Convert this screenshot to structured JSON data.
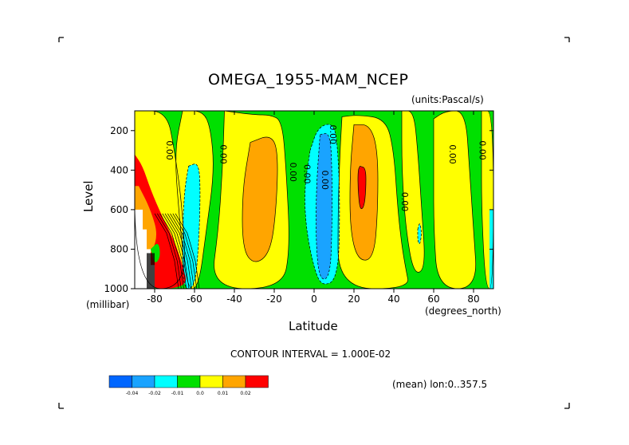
{
  "chart_data": {
    "type": "heatmap",
    "title": "OMEGA_1955-MAM_NCEP",
    "units": "(units:Pascal/s)",
    "xlabel": "Latitude",
    "ylabel": "Level",
    "x_unit": "(degrees_north)",
    "y_unit": "(millibar)",
    "xlim": [
      -90,
      90
    ],
    "ylim": [
      1000,
      100
    ],
    "x_ticks": [
      -80,
      -60,
      -40,
      -20,
      0,
      20,
      40,
      60,
      80
    ],
    "y_ticks": [
      200,
      400,
      600,
      800,
      1000
    ],
    "contour_interval": "CONTOUR INTERVAL = 1.000E-02",
    "mean_note": "(mean) lon:0..357.5",
    "contour_labels": [
      "0.00",
      "0.00",
      "0.00",
      "0.00",
      "0.00",
      "0.00",
      "0.00",
      "0.00",
      "0.00"
    ],
    "legend": {
      "labels": [
        "-0.04",
        "-0.02",
        "-0.01",
        "0.0",
        "0.01",
        "0.02"
      ],
      "colors": [
        "#0066ff",
        "#1aa3ff",
        "#00ffff",
        "#00e000",
        "#ffff00",
        "#ffa500",
        "#ff0000"
      ]
    },
    "regions": [
      {
        "name": "blue-core-south",
        "lat": [
          -66,
          -58
        ],
        "p": [
          380,
          1000
        ],
        "level": -0.02
      },
      {
        "name": "orange-southern-midlat",
        "lat": [
          -36,
          -18
        ],
        "p": [
          210,
          880
        ],
        "level": 0.01
      },
      {
        "name": "cyan-equatorial",
        "lat": [
          -5,
          14
        ],
        "p": [
          180,
          990
        ],
        "level": -0.02
      },
      {
        "name": "blue-equatorial-core",
        "lat": [
          0,
          10
        ],
        "p": [
          210,
          960
        ],
        "level": -0.04
      },
      {
        "name": "orange-northern-subtropics",
        "lat": [
          16,
          33
        ],
        "p": [
          170,
          860
        ],
        "level": 0.01
      },
      {
        "name": "red-northern-subtropics",
        "lat": [
          22,
          26
        ],
        "p": [
          370,
          600
        ],
        "level": 0.02
      },
      {
        "name": "red-antarctic-slope",
        "lat": [
          -90,
          -62
        ],
        "p": [
          320,
          1000
        ],
        "level": 0.02
      }
    ]
  }
}
